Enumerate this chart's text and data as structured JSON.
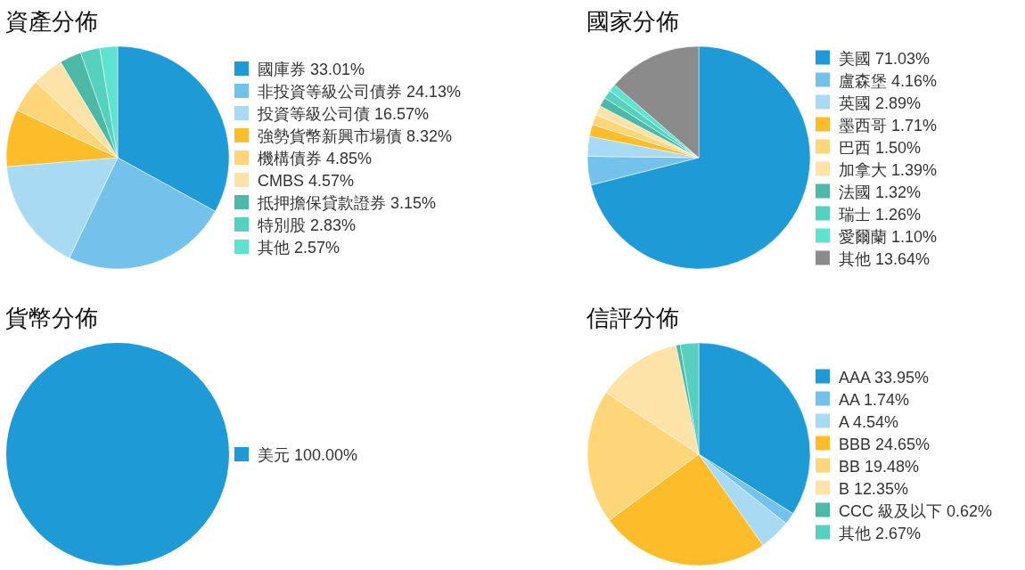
{
  "chart_data": [
    {
      "type": "pie",
      "title": "資產分佈",
      "legend": "right",
      "categories": [
        "國庫券",
        "非投資等級公司債券",
        "投資等級公司債",
        "強勢貨幣新興市場債",
        "機構債券",
        "CMBS",
        "抵押擔保貸款證券",
        "特別股",
        "其他"
      ],
      "values": [
        33.01,
        24.13,
        16.57,
        8.32,
        4.85,
        4.57,
        3.15,
        2.83,
        2.57
      ],
      "value_labels": [
        "33.01%",
        "24.13%",
        "16.57%",
        "8.32%",
        "4.85%",
        "4.57%",
        "3.15%",
        "2.83%",
        "2.57%"
      ],
      "colors": [
        "#1e9ad6",
        "#74c2eb",
        "#a8daf3",
        "#fdbd2b",
        "#fed67a",
        "#fee3a9",
        "#4cb8a6",
        "#57d1bf",
        "#5fe3d0"
      ]
    },
    {
      "type": "pie",
      "title": "國家分佈",
      "legend": "right",
      "categories": [
        "美國",
        "盧森堡",
        "英國",
        "墨西哥",
        "巴西",
        "加拿大",
        "法國",
        "瑞士",
        "愛爾蘭",
        "其他"
      ],
      "values": [
        71.03,
        4.16,
        2.89,
        1.71,
        1.5,
        1.39,
        1.32,
        1.26,
        1.1,
        13.64
      ],
      "value_labels": [
        "71.03%",
        "4.16%",
        "2.89%",
        "1.71%",
        "1.50%",
        "1.39%",
        "1.32%",
        "1.26%",
        "1.10%",
        "13.64%"
      ],
      "colors": [
        "#1e9ad6",
        "#74c2eb",
        "#a8daf3",
        "#fdbd2b",
        "#fed67a",
        "#fee3a9",
        "#4cb8a6",
        "#57d1bf",
        "#5fe3d0",
        "#8b8b8b"
      ]
    },
    {
      "type": "pie",
      "title": "貨幣分佈",
      "legend": "right",
      "categories": [
        "美元"
      ],
      "values": [
        100.0
      ],
      "value_labels": [
        "100.00%"
      ],
      "colors": [
        "#1e9ad6"
      ]
    },
    {
      "type": "pie",
      "title": "信評分佈",
      "legend": "right",
      "categories": [
        "AAA",
        "AA",
        "A",
        "BBB",
        "BB",
        "B",
        "CCC 級及以下",
        "其他"
      ],
      "values": [
        33.95,
        1.74,
        4.54,
        24.65,
        19.48,
        12.35,
        0.62,
        2.67
      ],
      "value_labels": [
        "33.95%",
        "1.74%",
        "4.54%",
        "24.65%",
        "19.48%",
        "12.35%",
        "0.62%",
        "2.67%"
      ],
      "colors": [
        "#1e9ad6",
        "#74c2eb",
        "#a8daf3",
        "#fdbd2b",
        "#fed67a",
        "#fee3a9",
        "#4cb8a6",
        "#57d1bf"
      ]
    }
  ]
}
